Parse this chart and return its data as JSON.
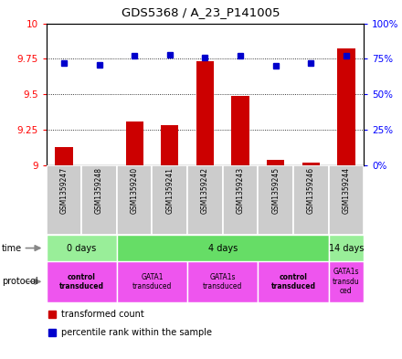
{
  "title": "GDS5368 / A_23_P141005",
  "samples": [
    "GSM1359247",
    "GSM1359248",
    "GSM1359240",
    "GSM1359241",
    "GSM1359242",
    "GSM1359243",
    "GSM1359245",
    "GSM1359246",
    "GSM1359244"
  ],
  "transformed_counts": [
    9.13,
    9.0,
    9.31,
    9.28,
    9.73,
    9.49,
    9.04,
    9.02,
    9.82
  ],
  "percentile_ranks": [
    72,
    71,
    77,
    78,
    76,
    77,
    70,
    72,
    77
  ],
  "ymin": 9.0,
  "ymax": 10.0,
  "y2min": 0,
  "y2max": 100,
  "yticks": [
    9.0,
    9.25,
    9.5,
    9.75,
    10.0
  ],
  "ytick_labels": [
    "9",
    "9.25",
    "9.5",
    "9.75",
    "10"
  ],
  "y2ticks": [
    0,
    25,
    50,
    75,
    100
  ],
  "y2tick_labels": [
    "0%",
    "25%",
    "50%",
    "75%",
    "100%"
  ],
  "bar_color": "#cc0000",
  "dot_color": "#0000cc",
  "bar_width": 0.5,
  "time_groups": [
    {
      "label": "0 days",
      "start": 0,
      "end": 2,
      "color": "#99ee99"
    },
    {
      "label": "4 days",
      "start": 2,
      "end": 8,
      "color": "#66dd66"
    },
    {
      "label": "14 days",
      "start": 8,
      "end": 9,
      "color": "#99ee99"
    }
  ],
  "protocol_groups": [
    {
      "label": "control\ntransduced",
      "start": 0,
      "end": 2,
      "color": "#ee55ee",
      "bold": true
    },
    {
      "label": "GATA1\ntransduced",
      "start": 2,
      "end": 4,
      "color": "#ee55ee",
      "bold": false
    },
    {
      "label": "GATA1s\ntransduced",
      "start": 4,
      "end": 6,
      "color": "#ee55ee",
      "bold": false
    },
    {
      "label": "control\ntransduced",
      "start": 6,
      "end": 8,
      "color": "#ee55ee",
      "bold": true
    },
    {
      "label": "GATA1s\ntransdu\nced",
      "start": 8,
      "end": 9,
      "color": "#ee55ee",
      "bold": false
    }
  ],
  "legend_red_label": "transformed count",
  "legend_blue_label": "percentile rank within the sample",
  "background_color": "#ffffff",
  "plot_bg_color": "#ffffff",
  "grid_color": "#000000",
  "sample_bg_color": "#cccccc"
}
